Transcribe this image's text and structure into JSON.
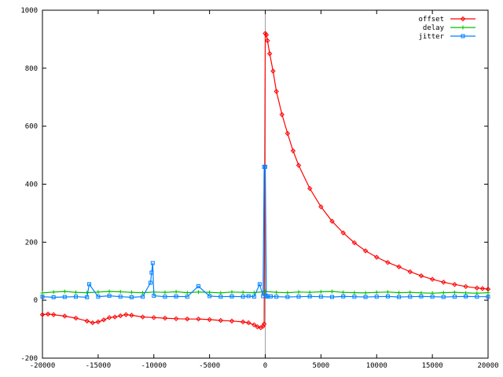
{
  "chart_data": {
    "type": "line",
    "title": "",
    "xlabel": "",
    "ylabel": "",
    "xlim": [
      -20000,
      20000
    ],
    "ylim": [
      -200,
      1000
    ],
    "x_ticks": [
      "-20000",
      "-15000",
      "-10000",
      "-5000",
      "0",
      "5000",
      "10000",
      "15000",
      "20000"
    ],
    "y_ticks": [
      "-200",
      "0",
      "200",
      "400",
      "600",
      "800",
      "1000"
    ],
    "x_tick_values": [
      -20000,
      -15000,
      -10000,
      -5000,
      0,
      5000,
      10000,
      15000,
      20000
    ],
    "y_tick_values": [
      -200,
      0,
      200,
      400,
      600,
      800,
      1000
    ],
    "grid": false,
    "zero_line_x": 0,
    "legend_position": "top-right",
    "series": [
      {
        "name": "offset",
        "color": "#ff0000",
        "marker": "diamond",
        "x": [
          -20000,
          -19500,
          -19000,
          -18000,
          -17000,
          -16000,
          -15500,
          -15000,
          -14500,
          -14000,
          -13500,
          -13000,
          -12500,
          -12000,
          -11000,
          -10000,
          -9000,
          -8000,
          -7000,
          -6000,
          -5000,
          -4000,
          -3000,
          -2000,
          -1500,
          -1000,
          -700,
          -400,
          -200,
          -100,
          0,
          100,
          200,
          400,
          700,
          1000,
          1500,
          2000,
          2500,
          3000,
          4000,
          5000,
          6000,
          7000,
          8000,
          9000,
          10000,
          11000,
          12000,
          13000,
          14000,
          15000,
          16000,
          17000,
          18000,
          19000,
          19500,
          20000
        ],
        "y": [
          -50,
          -48,
          -50,
          -55,
          -62,
          -72,
          -78,
          -75,
          -68,
          -60,
          -58,
          -54,
          -50,
          -52,
          -58,
          -60,
          -62,
          -64,
          -65,
          -65,
          -67,
          -70,
          -72,
          -75,
          -78,
          -85,
          -92,
          -95,
          -90,
          -82,
          920,
          915,
          895,
          850,
          790,
          720,
          640,
          575,
          515,
          465,
          385,
          322,
          272,
          232,
          198,
          170,
          148,
          130,
          115,
          98,
          84,
          72,
          62,
          54,
          47,
          42,
          40,
          38
        ]
      },
      {
        "name": "delay",
        "color": "#00c000",
        "marker": "plus",
        "x": [
          -20000,
          -19000,
          -18000,
          -17000,
          -16000,
          -15000,
          -14000,
          -13000,
          -12000,
          -11000,
          -10000,
          -9000,
          -8000,
          -7000,
          -6000,
          -5000,
          -4000,
          -3000,
          -2000,
          -1000,
          0,
          1000,
          2000,
          3000,
          4000,
          5000,
          6000,
          7000,
          8000,
          9000,
          10000,
          11000,
          12000,
          13000,
          14000,
          15000,
          16000,
          17000,
          18000,
          19000,
          20000
        ],
        "y": [
          25,
          28,
          30,
          27,
          26,
          28,
          30,
          29,
          27,
          26,
          28,
          27,
          29,
          26,
          28,
          27,
          25,
          28,
          27,
          26,
          30,
          27,
          26,
          28,
          27,
          29,
          30,
          27,
          26,
          25,
          27,
          28,
          26,
          27,
          25,
          24,
          26,
          27,
          25,
          24,
          26
        ]
      },
      {
        "name": "jitter",
        "color": "#0080ff",
        "marker": "square",
        "x": [
          -20000,
          -19000,
          -18000,
          -17000,
          -16000,
          -15800,
          -15000,
          -14000,
          -13000,
          -12000,
          -11000,
          -10300,
          -10200,
          -10100,
          -10000,
          -9000,
          -8000,
          -7000,
          -6000,
          -5000,
          -4000,
          -3000,
          -2000,
          -1500,
          -1000,
          -500,
          -200,
          -100,
          0,
          100,
          200,
          500,
          1000,
          2000,
          3000,
          4000,
          5000,
          6000,
          7000,
          8000,
          9000,
          10000,
          11000,
          12000,
          13000,
          14000,
          15000,
          16000,
          17000,
          18000,
          19000,
          20000
        ],
        "y": [
          12,
          10,
          11,
          12,
          10,
          55,
          12,
          15,
          12,
          10,
          12,
          60,
          95,
          128,
          15,
          12,
          13,
          12,
          48,
          14,
          12,
          13,
          12,
          14,
          12,
          55,
          14,
          460,
          460,
          15,
          12,
          13,
          12,
          11,
          12,
          13,
          12,
          11,
          13,
          12,
          11,
          12,
          13,
          11,
          12,
          13,
          12,
          11,
          12,
          13,
          12,
          12
        ]
      }
    ]
  }
}
